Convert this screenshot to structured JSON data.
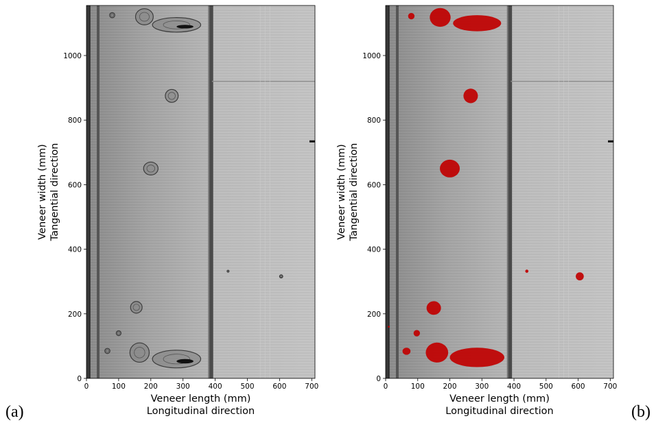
{
  "chart_data": [
    {
      "type": "image",
      "panel": "(a)",
      "xlabel": "Veneer length (mm)",
      "xlabel2": "Longitudinal direction",
      "ylabel": "Veneer width (mm)",
      "ylabel2": "Tangential direction",
      "xlim": [
        0,
        710
      ],
      "ylim": [
        0,
        1155
      ],
      "xticks": [
        "0",
        "100",
        "200",
        "300",
        "400",
        "500",
        "600",
        "700"
      ],
      "yticks": [
        "0",
        "200",
        "400",
        "600",
        "800",
        "1000"
      ],
      "grid": false,
      "knots": [
        {
          "x": 80,
          "y": 1125,
          "w": 16,
          "h": 16
        },
        {
          "x": 180,
          "y": 1120,
          "w": 55,
          "h": 50
        },
        {
          "x": 280,
          "y": 1095,
          "w": 150,
          "h": 45
        },
        {
          "x": 265,
          "y": 875,
          "w": 40,
          "h": 40
        },
        {
          "x": 200,
          "y": 650,
          "w": 45,
          "h": 40
        },
        {
          "x": 155,
          "y": 220,
          "w": 36,
          "h": 36
        },
        {
          "x": 100,
          "y": 140,
          "w": 15,
          "h": 15
        },
        {
          "x": 65,
          "y": 85,
          "w": 16,
          "h": 16
        },
        {
          "x": 165,
          "y": 80,
          "w": 60,
          "h": 60
        },
        {
          "x": 280,
          "y": 60,
          "w": 150,
          "h": 55
        },
        {
          "x": 440,
          "y": 332,
          "w": 6,
          "h": 6
        },
        {
          "x": 605,
          "y": 316,
          "w": 10,
          "h": 10
        }
      ]
    },
    {
      "type": "image",
      "panel": "(b)",
      "xlabel": "Veneer length (mm)",
      "xlabel2": "Longitudinal direction",
      "ylabel": "Veneer width (mm)",
      "ylabel2": "Tangential direction",
      "xlim": [
        0,
        710
      ],
      "ylim": [
        0,
        1155
      ],
      "xticks": [
        "0",
        "100",
        "200",
        "300",
        "400",
        "500",
        "600",
        "700"
      ],
      "yticks": [
        "0",
        "200",
        "400",
        "600",
        "800",
        "1000"
      ],
      "grid": false,
      "overlay_color": "#c00000",
      "knots": [
        {
          "x": 80,
          "y": 1122,
          "w": 20,
          "h": 20
        },
        {
          "x": 170,
          "y": 1118,
          "w": 65,
          "h": 58
        },
        {
          "x": 285,
          "y": 1100,
          "w": 150,
          "h": 50
        },
        {
          "x": 265,
          "y": 875,
          "w": 45,
          "h": 45
        },
        {
          "x": 200,
          "y": 650,
          "w": 62,
          "h": 55
        },
        {
          "x": 150,
          "y": 218,
          "w": 45,
          "h": 42
        },
        {
          "x": 97,
          "y": 140,
          "w": 20,
          "h": 20
        },
        {
          "x": 65,
          "y": 84,
          "w": 25,
          "h": 22
        },
        {
          "x": 160,
          "y": 80,
          "w": 70,
          "h": 62
        },
        {
          "x": 285,
          "y": 65,
          "w": 170,
          "h": 60
        },
        {
          "x": 440,
          "y": 332,
          "w": 10,
          "h": 10
        },
        {
          "x": 605,
          "y": 316,
          "w": 25,
          "h": 25
        },
        {
          "x": 10,
          "y": 160,
          "w": 6,
          "h": 6
        }
      ]
    }
  ],
  "panel_letters": {
    "a": "(a)",
    "b": "(b)"
  }
}
